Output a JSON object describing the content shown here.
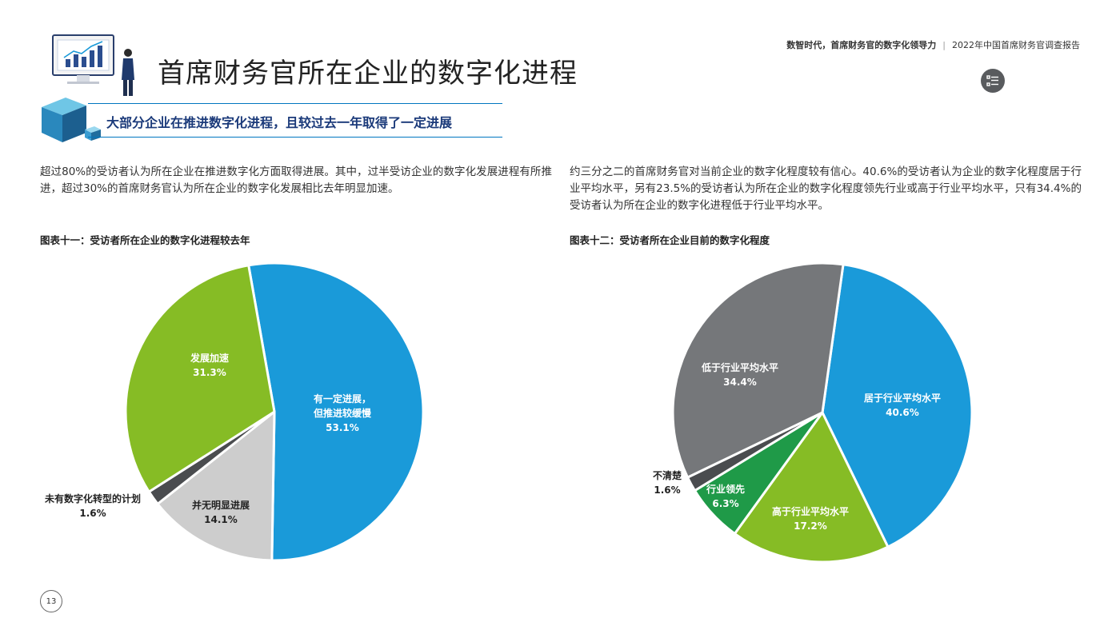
{
  "header": {
    "report_tagline": "数智时代，首席财务官的数字化领导力",
    "report_name": "2022年中国首席财务官调查报告",
    "separator": "|"
  },
  "menu_button": {
    "icon": "list-icon"
  },
  "page": {
    "title": "首席财务官所在企业的数字化进程",
    "subtitle": "大部分企业在推进数字化进程，且较过去一年取得了一定进展",
    "left_paragraph": "超过80%的受访者认为所在企业在推进数字化方面取得进展。其中，过半受访企业的数字化发展进程有所推进，超过30%的首席财务官认为所在企业的数字化发展相比去年明显加速。",
    "right_paragraph": "约三分之二的首席财务官对当前企业的数字化程度较有信心。40.6%的受访者认为企业的数字化程度居于行业平均水平，另有23.5%的受访者认为所在企业的数字化程度领先行业或高于行业平均水平，只有34.4%的受访者认为所在企业的数字化进程低于行业平均水平。",
    "page_number": "13"
  },
  "colors": {
    "blue": "#1a9ad9",
    "light_gray": "#cdcdcd",
    "dark_gray": "#4a4c4f",
    "lime": "#86bc25",
    "slate": "#75777a",
    "green": "#1f9a48"
  },
  "chart_data": [
    {
      "type": "pie",
      "title": "图表十一：受访者所在企业的数字化进程较去年",
      "slices": [
        {
          "label_lines": [
            "有一定进展，",
            "但推进较缓慢"
          ],
          "value": 53.1,
          "value_text": "53.1%",
          "color": "#1a9ad9",
          "label_color": "#ffffff"
        },
        {
          "label_lines": [
            "并无明显进展"
          ],
          "value": 14.1,
          "value_text": "14.1%",
          "color": "#cdcdcd",
          "label_color": "#222222"
        },
        {
          "label_lines": [
            "未有数字化转型的计划"
          ],
          "value": 1.6,
          "value_text": "1.6%",
          "color": "#4a4c4f",
          "label_color": "#222222"
        },
        {
          "label_lines": [
            "发展加速"
          ],
          "value": 31.3,
          "value_text": "31.3%",
          "color": "#86bc25",
          "label_color": "#ffffff"
        }
      ]
    },
    {
      "type": "pie",
      "title": "图表十二：受访者所在企业目前的数字化程度",
      "slices": [
        {
          "label_lines": [
            "居于行业平均水平"
          ],
          "value": 40.6,
          "value_text": "40.6%",
          "color": "#1a9ad9",
          "label_color": "#ffffff"
        },
        {
          "label_lines": [
            "高于行业平均水平"
          ],
          "value": 17.2,
          "value_text": "17.2%",
          "color": "#86bc25",
          "label_color": "#ffffff"
        },
        {
          "label_lines": [
            "行业领先"
          ],
          "value": 6.3,
          "value_text": "6.3%",
          "color": "#1f9a48",
          "label_color": "#ffffff"
        },
        {
          "label_lines": [
            "不清楚"
          ],
          "value": 1.6,
          "value_text": "1.6%",
          "color": "#4a4c4f",
          "label_color": "#222222"
        },
        {
          "label_lines": [
            "低于行业平均水平"
          ],
          "value": 34.4,
          "value_text": "34.4%",
          "color": "#75777a",
          "label_color": "#ffffff"
        }
      ]
    }
  ]
}
